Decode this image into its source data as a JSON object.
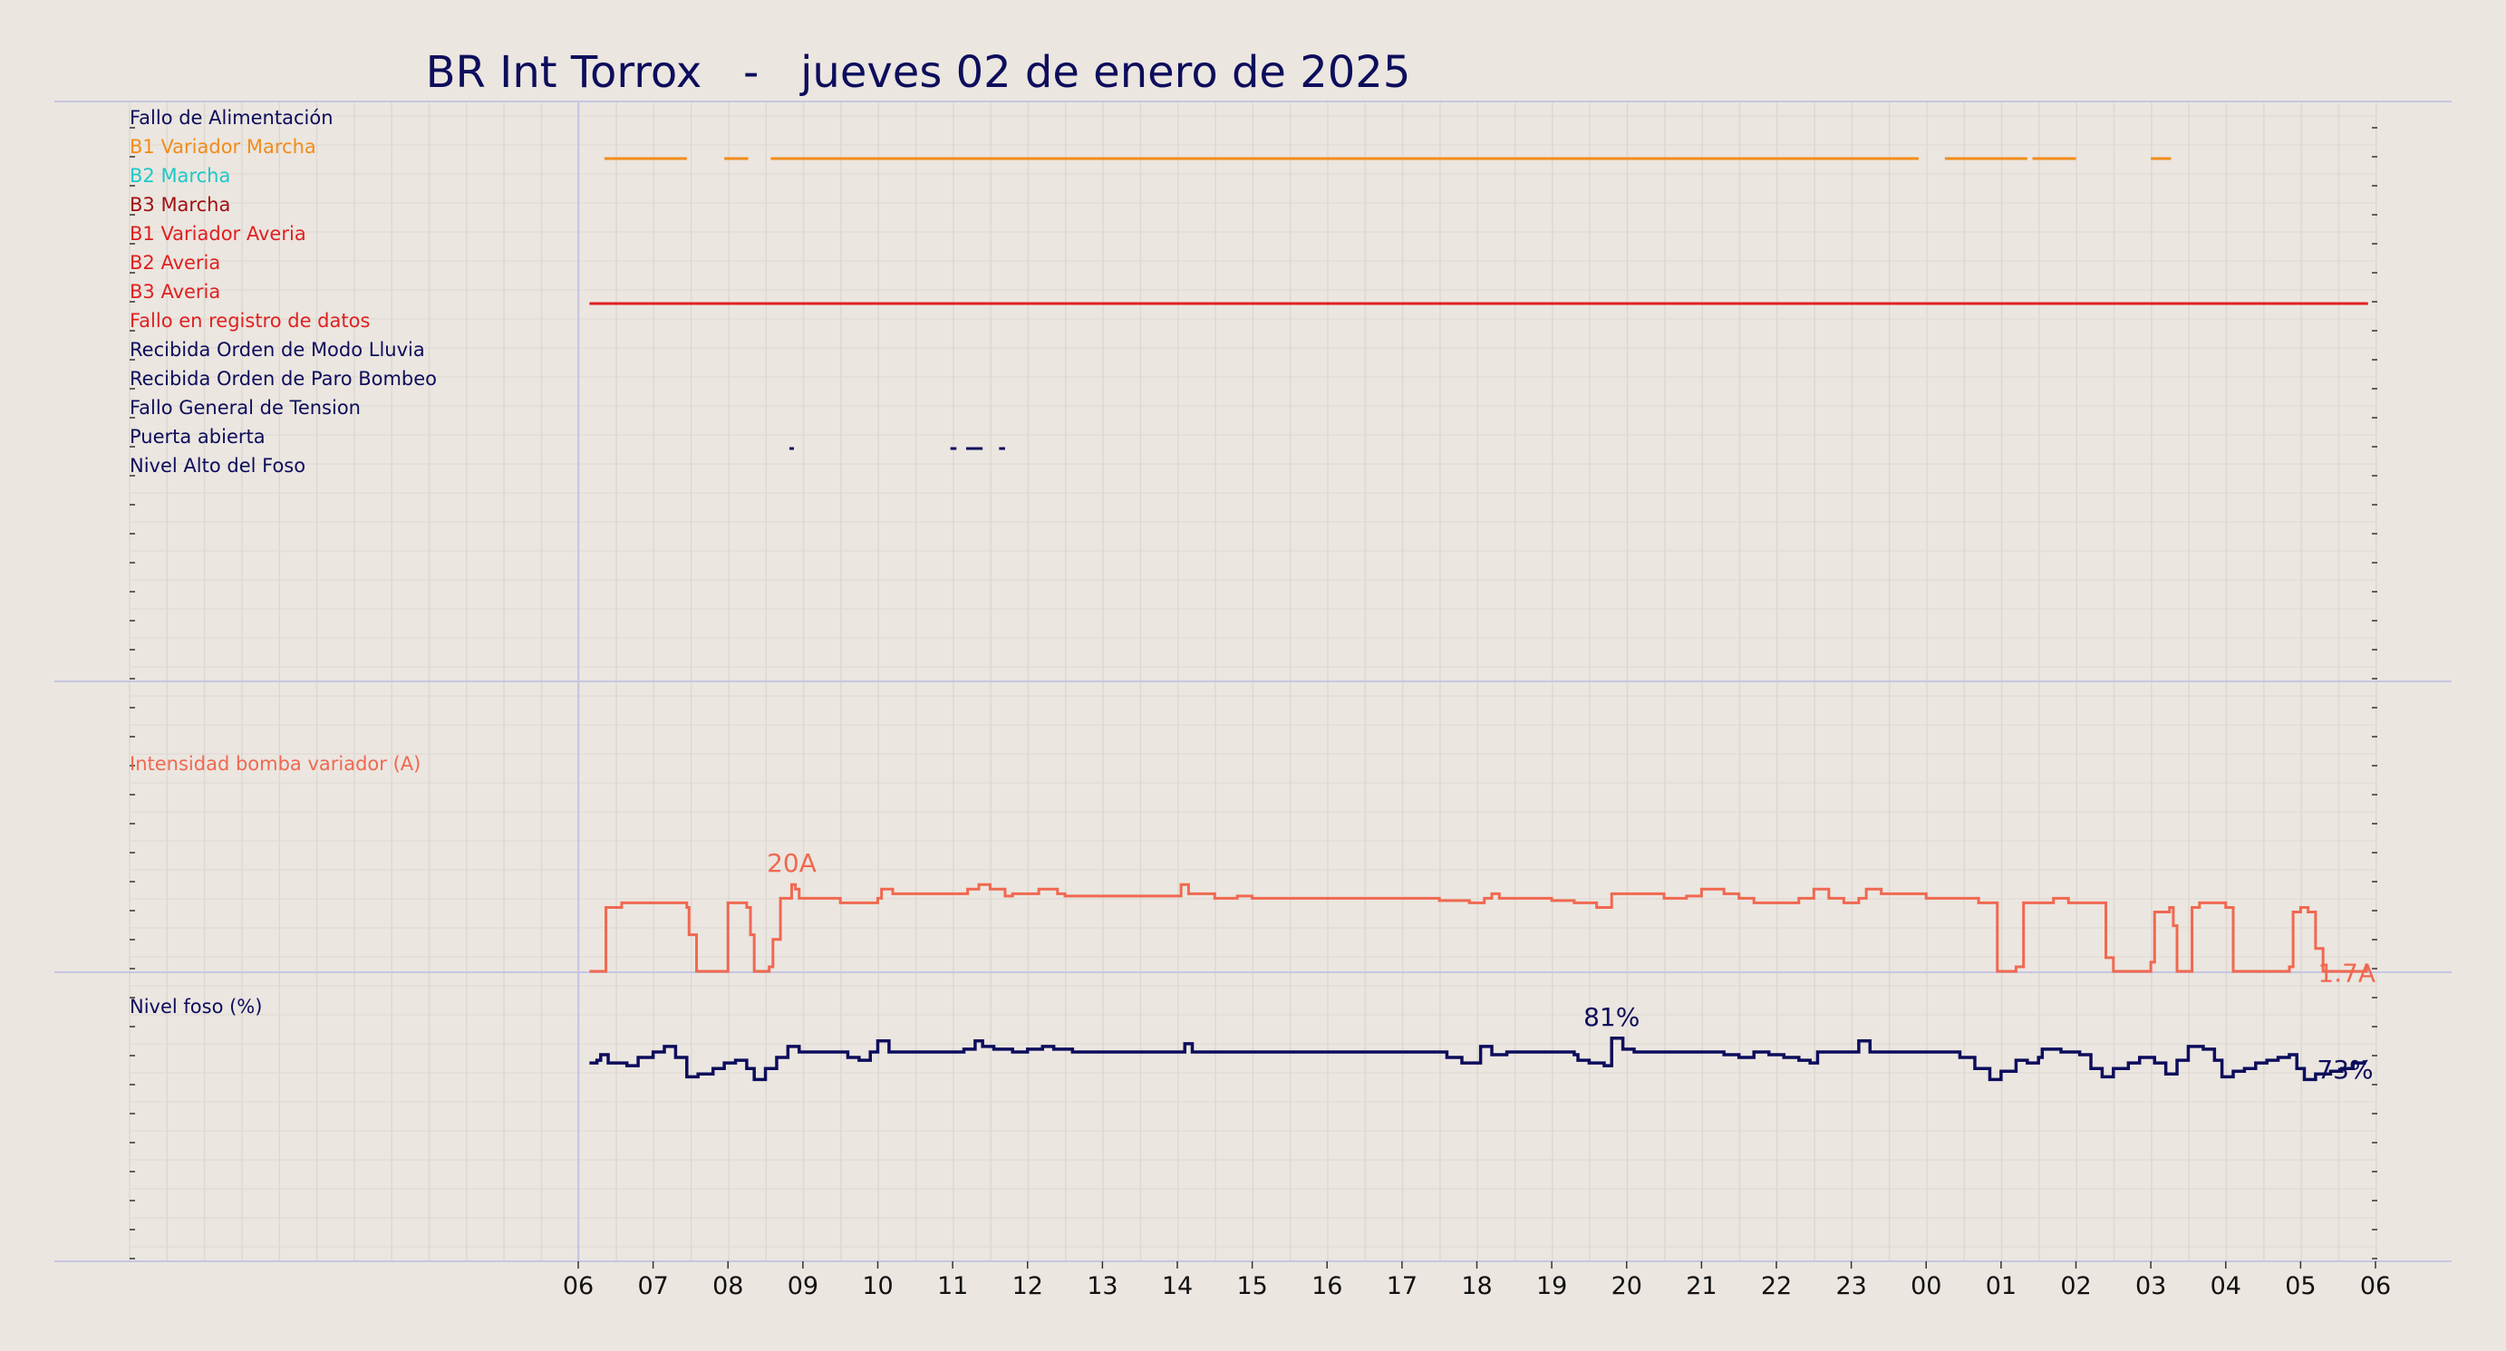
{
  "chart_data": {
    "type": "line",
    "title": "BR Int Torrox   -   jueves 02 de enero de 2025",
    "x_ticks": [
      "06",
      "07",
      "08",
      "09",
      "10",
      "11",
      "12",
      "13",
      "14",
      "15",
      "16",
      "17",
      "18",
      "19",
      "20",
      "21",
      "22",
      "23",
      "00",
      "01",
      "02",
      "03",
      "04",
      "05",
      "06"
    ],
    "grid": true,
    "colors": {
      "background": "#ebe6e0",
      "navy": "#0d0d5c",
      "orange": "#f28c1a",
      "cyan": "#1ec8c8",
      "darkred": "#a01010",
      "red": "#e02020",
      "salmon": "#f06850"
    },
    "digital_panel": {
      "signals": [
        {
          "label": "Fallo de Alimentación",
          "color": "#0d0d5c",
          "segments": []
        },
        {
          "label": "B1 Variador Marcha",
          "color": "#f28c1a",
          "segments": [
            [
              6.35,
              7.45
            ],
            [
              7.95,
              8.27
            ],
            [
              8.57,
              23.9
            ],
            [
              24.25,
              25.35
            ],
            [
              25.0,
              25.28
            ],
            [
              25.42,
              26.0
            ],
            [
              27.0,
              27.27
            ]
          ]
        },
        {
          "label": "B2 Marcha",
          "color": "#1ec8c8",
          "segments": []
        },
        {
          "label": "B3 Marcha",
          "color": "#a01010",
          "segments": []
        },
        {
          "label": "B1 Variador Averia",
          "color": "#e02020",
          "segments": []
        },
        {
          "label": "B2 Averia",
          "color": "#e02020",
          "segments": []
        },
        {
          "label": "B3 Averia",
          "color": "#e02020",
          "segments": [
            [
              6.15,
              29.9
            ]
          ]
        },
        {
          "label": "Fallo en registro de datos",
          "color": "#e02020",
          "segments": []
        },
        {
          "label": "Recibida Orden de Modo Lluvia",
          "color": "#0d0d5c",
          "segments": []
        },
        {
          "label": "Recibida Orden de Paro Bombeo",
          "color": "#0d0d5c",
          "segments": []
        },
        {
          "label": "Fallo General de Tension",
          "color": "#0d0d5c",
          "segments": []
        },
        {
          "label": "Puerta abierta",
          "color": "#0d0d5c",
          "segments": [
            [
              8.82,
              8.88
            ],
            [
              10.97,
              11.05
            ],
            [
              11.18,
              11.4
            ],
            [
              11.62,
              11.7
            ]
          ]
        },
        {
          "label": "Nivel Alto del Foso",
          "color": "#0d0d5c",
          "segments": []
        }
      ]
    },
    "series": [
      {
        "name": "Intensidad bomba variador (A)",
        "color": "#f06850",
        "unit": "A",
        "ylim": [
          0,
          50
        ],
        "max_label": "20A",
        "last_label": "1.7A",
        "points": [
          [
            6.15,
            0
          ],
          [
            6.35,
            0
          ],
          [
            6.37,
            14
          ],
          [
            6.55,
            14
          ],
          [
            6.58,
            15
          ],
          [
            7.4,
            15
          ],
          [
            7.45,
            14
          ],
          [
            7.48,
            8
          ],
          [
            7.55,
            8
          ],
          [
            7.58,
            0
          ],
          [
            7.95,
            0
          ],
          [
            8.0,
            15
          ],
          [
            8.25,
            14
          ],
          [
            8.3,
            8
          ],
          [
            8.35,
            0
          ],
          [
            8.55,
            1
          ],
          [
            8.6,
            7
          ],
          [
            8.7,
            16
          ],
          [
            8.82,
            16
          ],
          [
            8.85,
            19
          ],
          [
            8.9,
            18
          ],
          [
            8.95,
            16
          ],
          [
            9.5,
            15
          ],
          [
            10.0,
            16
          ],
          [
            10.05,
            18
          ],
          [
            10.2,
            17
          ],
          [
            10.5,
            17
          ],
          [
            11.0,
            17
          ],
          [
            11.2,
            18
          ],
          [
            11.35,
            19
          ],
          [
            11.5,
            18
          ],
          [
            11.7,
            16.5
          ],
          [
            11.8,
            17
          ],
          [
            12.1,
            17
          ],
          [
            12.15,
            18
          ],
          [
            12.4,
            17
          ],
          [
            12.5,
            16.5
          ],
          [
            13.0,
            16.5
          ],
          [
            14.0,
            16.5
          ],
          [
            14.05,
            19
          ],
          [
            14.15,
            17
          ],
          [
            14.5,
            16
          ],
          [
            14.8,
            16.5
          ],
          [
            15.0,
            16
          ],
          [
            15.5,
            16
          ],
          [
            16.0,
            16
          ],
          [
            16.3,
            16
          ],
          [
            17.0,
            16
          ],
          [
            17.3,
            16
          ],
          [
            17.5,
            15.5
          ],
          [
            17.9,
            15
          ],
          [
            18.1,
            16
          ],
          [
            18.2,
            17
          ],
          [
            18.3,
            16
          ],
          [
            18.5,
            16
          ],
          [
            19.0,
            15.5
          ],
          [
            19.2,
            15.5
          ],
          [
            19.3,
            15
          ],
          [
            19.6,
            14
          ],
          [
            19.8,
            17
          ],
          [
            20.0,
            17
          ],
          [
            20.5,
            16
          ],
          [
            20.8,
            16.5
          ],
          [
            21.0,
            18
          ],
          [
            21.3,
            17
          ],
          [
            21.5,
            16
          ],
          [
            21.7,
            15
          ],
          [
            22.0,
            15
          ],
          [
            22.3,
            16
          ],
          [
            22.5,
            18
          ],
          [
            22.7,
            16
          ],
          [
            22.9,
            15
          ],
          [
            23.0,
            15
          ],
          [
            23.1,
            16
          ],
          [
            23.2,
            18
          ],
          [
            23.4,
            17
          ],
          [
            23.6,
            17
          ],
          [
            24.0,
            16
          ],
          [
            24.5,
            16
          ],
          [
            24.7,
            15
          ],
          [
            24.95,
            0
          ],
          [
            25.0,
            0
          ],
          [
            25.2,
            1
          ],
          [
            25.3,
            15
          ],
          [
            25.7,
            16
          ],
          [
            25.9,
            15
          ],
          [
            26.2,
            15
          ],
          [
            26.4,
            3
          ],
          [
            26.5,
            0
          ],
          [
            26.9,
            0
          ],
          [
            27.0,
            2
          ],
          [
            27.05,
            13
          ],
          [
            27.25,
            14
          ],
          [
            27.3,
            10
          ],
          [
            27.35,
            0
          ],
          [
            27.5,
            0
          ],
          [
            27.55,
            14
          ],
          [
            27.65,
            15
          ],
          [
            27.9,
            15
          ],
          [
            28.0,
            14
          ],
          [
            28.1,
            0
          ],
          [
            28.7,
            0
          ],
          [
            28.85,
            1
          ],
          [
            28.9,
            13
          ],
          [
            29.0,
            14
          ],
          [
            29.1,
            13
          ],
          [
            29.2,
            5
          ],
          [
            29.3,
            0
          ],
          [
            29.85,
            0
          ],
          [
            29.88,
            1.7
          ]
        ]
      },
      {
        "name": "Nivel foso (%)",
        "color": "#0d0d5c",
        "unit": "%",
        "ylim": [
          0,
          100
        ],
        "max_label": "81%",
        "last_label": "73%",
        "points": [
          [
            6.15,
            72
          ],
          [
            6.25,
            73
          ],
          [
            6.3,
            75
          ],
          [
            6.4,
            72
          ],
          [
            6.65,
            71
          ],
          [
            6.8,
            74
          ],
          [
            7.0,
            76
          ],
          [
            7.15,
            78
          ],
          [
            7.3,
            74
          ],
          [
            7.45,
            67
          ],
          [
            7.6,
            68
          ],
          [
            7.8,
            70
          ],
          [
            7.95,
            72
          ],
          [
            8.1,
            73
          ],
          [
            8.25,
            70
          ],
          [
            8.35,
            66
          ],
          [
            8.5,
            70
          ],
          [
            8.65,
            74
          ],
          [
            8.8,
            78
          ],
          [
            8.95,
            76
          ],
          [
            9.15,
            76
          ],
          [
            9.4,
            76
          ],
          [
            9.6,
            74
          ],
          [
            9.75,
            73
          ],
          [
            9.9,
            76
          ],
          [
            10.0,
            80
          ],
          [
            10.15,
            76
          ],
          [
            10.4,
            76
          ],
          [
            10.8,
            76
          ],
          [
            11.0,
            76
          ],
          [
            11.15,
            77
          ],
          [
            11.3,
            80
          ],
          [
            11.4,
            78
          ],
          [
            11.55,
            77
          ],
          [
            11.8,
            76
          ],
          [
            12.0,
            77
          ],
          [
            12.2,
            78
          ],
          [
            12.35,
            77
          ],
          [
            12.6,
            76
          ],
          [
            13.0,
            76
          ],
          [
            13.5,
            76
          ],
          [
            14.0,
            76
          ],
          [
            14.1,
            79
          ],
          [
            14.2,
            76
          ],
          [
            14.5,
            76
          ],
          [
            15.0,
            76
          ],
          [
            16.0,
            76
          ],
          [
            17.0,
            76
          ],
          [
            17.5,
            76
          ],
          [
            17.6,
            74
          ],
          [
            17.8,
            72
          ],
          [
            17.95,
            72
          ],
          [
            18.05,
            78
          ],
          [
            18.2,
            75
          ],
          [
            18.4,
            76
          ],
          [
            19.0,
            76
          ],
          [
            19.3,
            75
          ],
          [
            19.35,
            73
          ],
          [
            19.5,
            72
          ],
          [
            19.7,
            71
          ],
          [
            19.8,
            81
          ],
          [
            19.95,
            77
          ],
          [
            20.1,
            76
          ],
          [
            20.5,
            76
          ],
          [
            21.0,
            76
          ],
          [
            21.3,
            75
          ],
          [
            21.5,
            74
          ],
          [
            21.7,
            76
          ],
          [
            21.9,
            75
          ],
          [
            22.1,
            74
          ],
          [
            22.3,
            73
          ],
          [
            22.45,
            72
          ],
          [
            22.55,
            76
          ],
          [
            22.7,
            76
          ],
          [
            22.9,
            76
          ],
          [
            23.1,
            80
          ],
          [
            23.25,
            76
          ],
          [
            23.5,
            76
          ],
          [
            24.0,
            76
          ],
          [
            24.3,
            76
          ],
          [
            24.45,
            74
          ],
          [
            24.65,
            70
          ],
          [
            24.85,
            66
          ],
          [
            25.0,
            69
          ],
          [
            25.2,
            73
          ],
          [
            25.35,
            72
          ],
          [
            25.5,
            74
          ],
          [
            25.55,
            77
          ],
          [
            25.8,
            76
          ],
          [
            26.05,
            75
          ],
          [
            26.2,
            70
          ],
          [
            26.35,
            67
          ],
          [
            26.5,
            70
          ],
          [
            26.7,
            72
          ],
          [
            26.85,
            74
          ],
          [
            27.05,
            72
          ],
          [
            27.2,
            68
          ],
          [
            27.35,
            73
          ],
          [
            27.5,
            78
          ],
          [
            27.7,
            77
          ],
          [
            27.85,
            73
          ],
          [
            27.95,
            67
          ],
          [
            28.1,
            69
          ],
          [
            28.25,
            70
          ],
          [
            28.4,
            72
          ],
          [
            28.55,
            73
          ],
          [
            28.7,
            74
          ],
          [
            28.85,
            75
          ],
          [
            28.95,
            70
          ],
          [
            29.05,
            66
          ],
          [
            29.2,
            68
          ],
          [
            29.4,
            69
          ],
          [
            29.55,
            70
          ],
          [
            29.7,
            72
          ],
          [
            29.85,
            73
          ]
        ]
      }
    ]
  }
}
